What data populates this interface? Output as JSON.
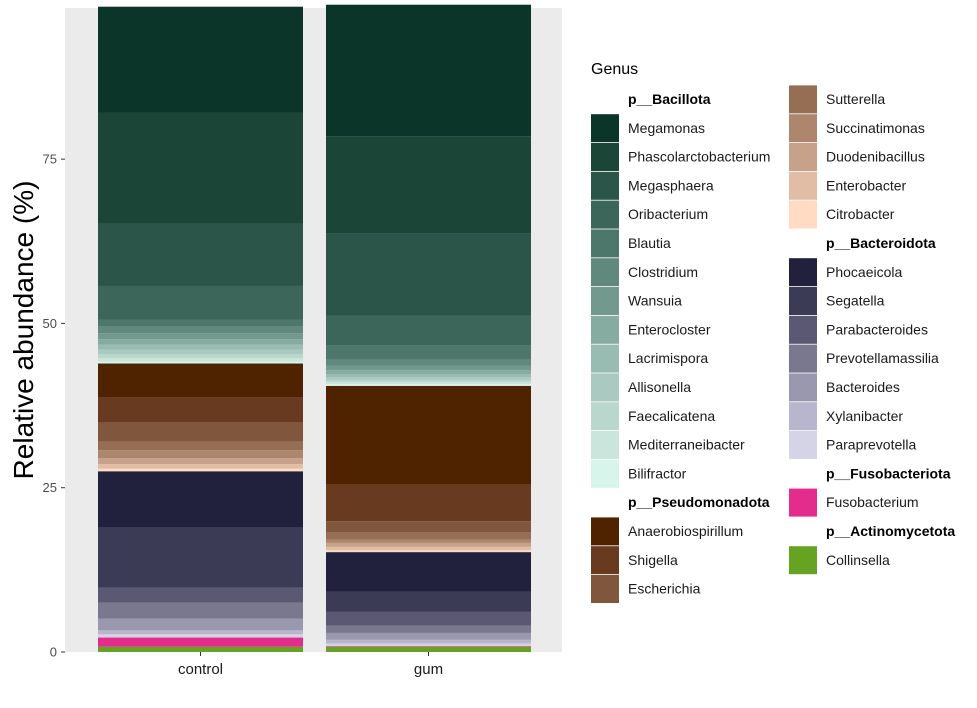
{
  "chart_data": {
    "type": "bar",
    "stacked": true,
    "ylabel": "Relative abundance (%)",
    "xlabel": "",
    "ylim": [
      0,
      98
    ],
    "y_ticks": [
      0,
      25,
      50,
      75
    ],
    "categories": [
      "control",
      "gum"
    ],
    "legend": {
      "title": "Genus",
      "placement": "right",
      "columns": [
        [
          {
            "header": "p__Bacillota"
          },
          {
            "label": "Megamonas",
            "color": "#0a3528"
          },
          {
            "label": "Phascolarctobacterium",
            "color": "#1a4537"
          },
          {
            "label": "Megasphaera",
            "color": "#2a5548"
          },
          {
            "label": "Oribacterium",
            "color": "#3b6659"
          },
          {
            "label": "Blautia",
            "color": "#4d776b"
          },
          {
            "label": "Clostridium",
            "color": "#60887d"
          },
          {
            "label": "Wansuia",
            "color": "#73998f"
          },
          {
            "label": "Enterocloster",
            "color": "#86aba1"
          },
          {
            "label": "Lacrimispora",
            "color": "#99bcb2"
          },
          {
            "label": "Allisonella",
            "color": "#aac9c0"
          },
          {
            "label": "Faecalicatena",
            "color": "#bad7ce"
          },
          {
            "label": "Mediterraneibacter",
            "color": "#c9e5dc"
          },
          {
            "label": "Bilifractor",
            "color": "#d8f5ec"
          },
          {
            "header": "p__Pseudomonadota"
          },
          {
            "label": "Anaerobiospirillum",
            "color": "#4f2300"
          },
          {
            "label": "Shigella",
            "color": "#683a1f"
          },
          {
            "label": "Escherichia",
            "color": "#80573d"
          }
        ],
        [
          {
            "label": "Sutterella",
            "color": "#966e54"
          },
          {
            "label": "Succinatimonas",
            "color": "#ae866d"
          },
          {
            "label": "Duodenibacillus",
            "color": "#c7a189"
          },
          {
            "label": "Enterobacter",
            "color": "#e1bda6"
          },
          {
            "label": "Citrobacter",
            "color": "#ffdbc4"
          },
          {
            "header": "p__Bacteroidota"
          },
          {
            "label": "Phocaeicola",
            "color": "#21203d"
          },
          {
            "label": "Segatella",
            "color": "#3c3b56"
          },
          {
            "label": "Parabacteroides",
            "color": "#5a5873"
          },
          {
            "label": "Prevotellamassilia",
            "color": "#7a788f"
          },
          {
            "label": "Bacteroides",
            "color": "#9a98ae"
          },
          {
            "label": "Xylanibacter",
            "color": "#b8b6cc"
          },
          {
            "label": "Paraprevotella",
            "color": "#d5d4e6"
          },
          {
            "header": "p__Fusobacteriota"
          },
          {
            "label": "Fusobacterium",
            "color": "#e32c8c"
          },
          {
            "header": "p__Actinomycetota"
          },
          {
            "label": "Collinsella",
            "color": "#67a323"
          }
        ]
      ]
    },
    "series": [
      {
        "name": "Collinsella",
        "color": "#67a323",
        "values": [
          0.8,
          0.8
        ]
      },
      {
        "name": "Fusobacterium",
        "color": "#e32c8c",
        "values": [
          1.4,
          0.1
        ]
      },
      {
        "name": "Paraprevotella",
        "color": "#d5d4e6",
        "values": [
          0.5,
          0.4
        ]
      },
      {
        "name": "Xylanibacter",
        "color": "#b8b6cc",
        "values": [
          0.6,
          0.6
        ]
      },
      {
        "name": "Bacteroides",
        "color": "#9a98ae",
        "values": [
          1.8,
          1.0
        ]
      },
      {
        "name": "Prevotellamassilia",
        "color": "#7a788f",
        "values": [
          2.4,
          1.1
        ]
      },
      {
        "name": "Parabacteroides",
        "color": "#5a5873",
        "values": [
          2.3,
          2.1
        ]
      },
      {
        "name": "Segatella",
        "color": "#3c3b56",
        "values": [
          9.1,
          3.1
        ]
      },
      {
        "name": "Phocaeicola",
        "color": "#21203d",
        "values": [
          8.6,
          6.0
        ]
      },
      {
        "name": "Citrobacter",
        "color": "#ffdbc4",
        "values": [
          0.4,
          0.3
        ]
      },
      {
        "name": "Enterobacter",
        "color": "#e1bda6",
        "values": [
          0.7,
          0.5
        ]
      },
      {
        "name": "Duodenibacillus",
        "color": "#c7a189",
        "values": [
          0.9,
          0.6
        ]
      },
      {
        "name": "Succinatimonas",
        "color": "#ae866d",
        "values": [
          1.2,
          0.5
        ]
      },
      {
        "name": "Sutterella",
        "color": "#966e54",
        "values": [
          1.3,
          1.1
        ]
      },
      {
        "name": "Escherichia",
        "color": "#80573d",
        "values": [
          3.0,
          1.7
        ]
      },
      {
        "name": "Shigella",
        "color": "#683a1f",
        "values": [
          3.7,
          5.6
        ]
      },
      {
        "name": "Anaerobiospirillum",
        "color": "#4f2300",
        "values": [
          5.2,
          15.0
        ]
      },
      {
        "name": "Bilifractor",
        "color": "#d8f5ec",
        "values": [
          0.3,
          0.3
        ]
      },
      {
        "name": "Mediterraneibacter",
        "color": "#c9e5dc",
        "values": [
          0.5,
          0.3
        ]
      },
      {
        "name": "Faecalicatena",
        "color": "#bad7ce",
        "values": [
          0.6,
          0.3
        ]
      },
      {
        "name": "Allisonella",
        "color": "#aac9c0",
        "values": [
          0.7,
          0.4
        ]
      },
      {
        "name": "Lacrimispora",
        "color": "#99bcb2",
        "values": [
          0.8,
          0.5
        ]
      },
      {
        "name": "Enterocloster",
        "color": "#86aba1",
        "values": [
          0.8,
          0.6
        ]
      },
      {
        "name": "Wansuia",
        "color": "#73998f",
        "values": [
          0.9,
          0.7
        ]
      },
      {
        "name": "Clostridium",
        "color": "#60887d",
        "values": [
          1.0,
          0.9
        ]
      },
      {
        "name": "Blautia",
        "color": "#4d776b",
        "values": [
          1.1,
          2.1
        ]
      },
      {
        "name": "Oribacterium",
        "color": "#3b6659",
        "values": [
          5.1,
          4.6
        ]
      },
      {
        "name": "Megasphaera",
        "color": "#2a5548",
        "values": [
          9.5,
          12.5
        ]
      },
      {
        "name": "Phascolarctobacterium",
        "color": "#1a4537",
        "values": [
          16.9,
          14.8
        ]
      },
      {
        "name": "Megamonas",
        "color": "#0a3528",
        "values": [
          16.1,
          20.0
        ]
      }
    ]
  }
}
